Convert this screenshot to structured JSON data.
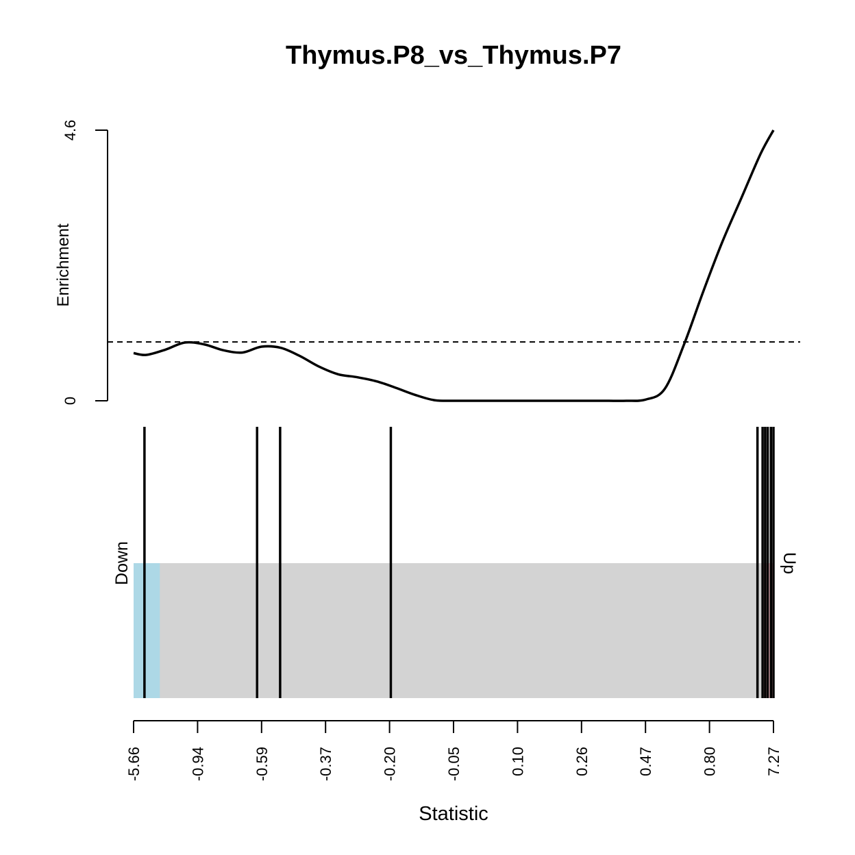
{
  "chart_data": {
    "type": "line",
    "title": "Thymus.P8_vs_Thymus.P7",
    "enrichment_axis": {
      "label": "Enrichment",
      "ticks": [
        "0",
        "4.6"
      ],
      "ylim": [
        0,
        4.6
      ]
    },
    "reference_line": {
      "y": 1,
      "style": "dashed"
    },
    "enrichment_curve": {
      "x": [
        0.0,
        0.02,
        0.05,
        0.08,
        0.11,
        0.14,
        0.17,
        0.2,
        0.23,
        0.26,
        0.29,
        0.32,
        0.35,
        0.38,
        0.41,
        0.44,
        0.47,
        0.5,
        0.53,
        0.56,
        0.59,
        0.62,
        0.65,
        0.68,
        0.71,
        0.74,
        0.77,
        0.8,
        0.83,
        0.86,
        0.89,
        0.92,
        0.95,
        0.98,
        1.0
      ],
      "y": [
        0.81,
        0.78,
        0.87,
        0.99,
        0.96,
        0.86,
        0.82,
        0.92,
        0.9,
        0.76,
        0.58,
        0.45,
        0.4,
        0.33,
        0.22,
        0.1,
        0.01,
        0.0,
        0.0,
        0.0,
        0.0,
        0.0,
        0.0,
        0.0,
        0.0,
        0.0,
        0.0,
        0.02,
        0.2,
        0.95,
        1.85,
        2.7,
        3.45,
        4.2,
        4.6
      ]
    },
    "barcode": {
      "positions": [
        0.017,
        0.193,
        0.229,
        0.402,
        0.975,
        0.983,
        0.987,
        0.991,
        0.996,
        1.0
      ],
      "down_region": [
        0.0,
        0.041
      ],
      "up_region": [
        0.983,
        1.0
      ],
      "down_label": "Down",
      "up_label": "Up",
      "colors": {
        "down": "#add8e6",
        "up": "#ffc0cb",
        "middle": "#d3d3d3",
        "lines": "#000000"
      }
    },
    "statistic_axis": {
      "label": "Statistic",
      "tick_labels": [
        "-5.66",
        "-0.94",
        "-0.59",
        "-0.37",
        "-0.20",
        "-0.05",
        "0.10",
        "0.26",
        "0.47",
        "0.80",
        "7.27"
      ]
    },
    "grid": false
  }
}
